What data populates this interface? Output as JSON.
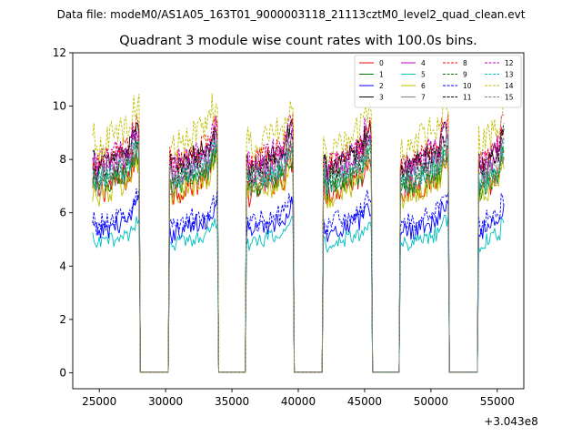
{
  "chart_data": {
    "type": "line",
    "suptitle": "Data file: modeM0/AS1A05_163T01_9000003118_21113cztM0_level2_quad_clean.evt",
    "title": "Quadrant 3 module wise count rates with 100.0s bins.",
    "xlabel": "",
    "ylabel": "",
    "x_offset_label": "+3.043e8",
    "x_offset": 304300000,
    "xlim": [
      23000,
      57000
    ],
    "ylim": [
      -0.6,
      12
    ],
    "x_ticks": [
      25000,
      30000,
      35000,
      40000,
      45000,
      50000,
      55000
    ],
    "x_tick_labels": [
      "25000",
      "30000",
      "35000",
      "40000",
      "45000",
      "50000",
      "55000"
    ],
    "y_ticks": [
      0,
      2,
      4,
      6,
      8,
      10,
      12
    ],
    "y_tick_labels": [
      "0",
      "2",
      "4",
      "6",
      "8",
      "10",
      "12"
    ],
    "bin_size_s": 100,
    "on_segments": [
      [
        24500,
        28000
      ],
      [
        30300,
        33900
      ],
      [
        36100,
        39600
      ],
      [
        41900,
        45500
      ],
      [
        47700,
        51300
      ],
      [
        53600,
        55500
      ]
    ],
    "legend_position": "top-right",
    "series": [
      {
        "name": "0",
        "color": "#ff0000",
        "style": "solid",
        "level": 7.2,
        "amplitude": 0.55
      },
      {
        "name": "1",
        "color": "#008000",
        "style": "solid",
        "level": 7.3,
        "amplitude": 0.45
      },
      {
        "name": "2",
        "color": "#0000ff",
        "style": "solid",
        "level": 5.6,
        "amplitude": 0.4
      },
      {
        "name": "3",
        "color": "#000000",
        "style": "solid",
        "level": 8.2,
        "amplitude": 0.45
      },
      {
        "name": "4",
        "color": "#bf00bf",
        "style": "solid",
        "level": 7.9,
        "amplitude": 0.45
      },
      {
        "name": "5",
        "color": "#00bfbf",
        "style": "solid",
        "level": 5.1,
        "amplitude": 0.3
      },
      {
        "name": "6",
        "color": "#bfbf00",
        "style": "solid",
        "level": 7.0,
        "amplitude": 0.45
      },
      {
        "name": "7",
        "color": "#808080",
        "style": "solid",
        "level": 7.4,
        "amplitude": 0.4
      },
      {
        "name": "8",
        "color": "#ff0000",
        "style": "dashed",
        "level": 8.3,
        "amplitude": 0.5
      },
      {
        "name": "9",
        "color": "#008000",
        "style": "dashed",
        "level": 7.5,
        "amplitude": 0.45
      },
      {
        "name": "10",
        "color": "#0000ff",
        "style": "dashed",
        "level": 5.9,
        "amplitude": 0.4
      },
      {
        "name": "11",
        "color": "#000000",
        "style": "dashed",
        "level": 8.0,
        "amplitude": 0.45
      },
      {
        "name": "12",
        "color": "#bf00bf",
        "style": "dashed",
        "level": 8.3,
        "amplitude": 0.5
      },
      {
        "name": "13",
        "color": "#00bfbf",
        "style": "dashed",
        "level": 7.6,
        "amplitude": 0.45
      },
      {
        "name": "14",
        "color": "#bfbf00",
        "style": "dashed",
        "level": 9.0,
        "amplitude": 0.6
      },
      {
        "name": "15",
        "color": "#808080",
        "style": "dashed",
        "level": 7.8,
        "amplitude": 0.45
      }
    ]
  }
}
